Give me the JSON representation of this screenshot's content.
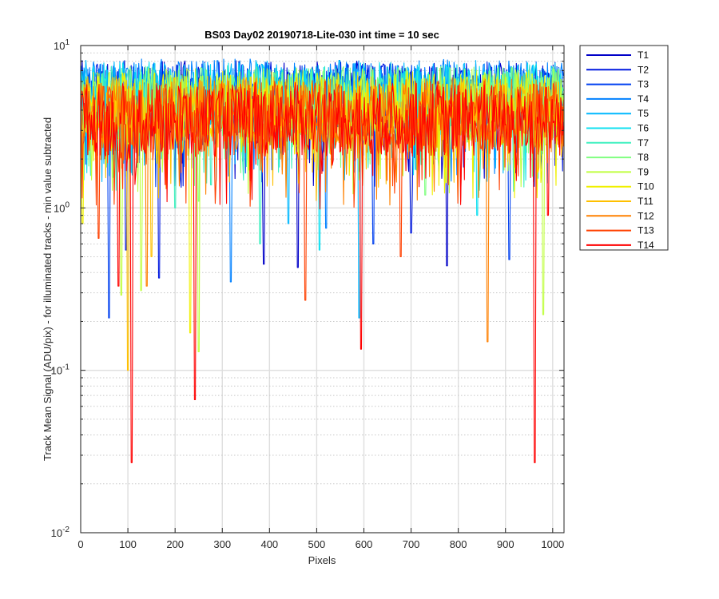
{
  "chart_data": {
    "type": "line",
    "title": "BS03 Day02 20190718-Lite-030 int time = 10 sec",
    "xlabel": "Pixels",
    "ylabel": "Track Mean Signal (ADU/pix) - for illuminated tracks - min value subtracted",
    "xlim": [
      0,
      1024
    ],
    "ylim": [
      0.01,
      10
    ],
    "yscale": "log",
    "grid": true,
    "minor_grid": "dotted",
    "legend_position": "outside-right",
    "x_ticks": [
      "0",
      "100",
      "200",
      "300",
      "400",
      "500",
      "600",
      "700",
      "800",
      "900",
      "1000"
    ],
    "x_tick_values": [
      0,
      100,
      200,
      300,
      400,
      500,
      600,
      700,
      800,
      900,
      1000
    ],
    "y_ticks": [
      {
        "value": 10,
        "base": "10",
        "exp": "1"
      },
      {
        "value": 1,
        "base": "10",
        "exp": "0"
      },
      {
        "value": 0.1,
        "base": "10",
        "exp": "-1"
      },
      {
        "value": 0.01,
        "base": "10",
        "exp": "-2"
      }
    ],
    "series_band_estimate": {
      "typical_low": 2.0,
      "typical_high": 6.5,
      "upper_envelope": 8.3
    },
    "series": [
      {
        "name": "T1",
        "color": "#0000c8",
        "base": 4.8,
        "dips": [
          {
            "x": 388,
            "y": 0.45
          },
          {
            "x": 460,
            "y": 0.43
          },
          {
            "x": 775,
            "y": 0.44
          }
        ]
      },
      {
        "name": "T2",
        "color": "#0018e0",
        "base": 4.7,
        "dips": [
          {
            "x": 95,
            "y": 0.55
          },
          {
            "x": 165,
            "y": 0.37
          },
          {
            "x": 700,
            "y": 0.7
          }
        ]
      },
      {
        "name": "T3",
        "color": "#0040f0",
        "base": 4.6,
        "dips": [
          {
            "x": 60,
            "y": 0.21
          },
          {
            "x": 620,
            "y": 0.6
          },
          {
            "x": 908,
            "y": 0.48
          }
        ]
      },
      {
        "name": "T4",
        "color": "#0080ff",
        "base": 4.9,
        "dips": [
          {
            "x": 318,
            "y": 0.35
          },
          {
            "x": 520,
            "y": 0.75
          }
        ]
      },
      {
        "name": "T5",
        "color": "#00b8ff",
        "base": 4.8,
        "dips": [
          {
            "x": 590,
            "y": 0.21
          },
          {
            "x": 440,
            "y": 0.8
          }
        ]
      },
      {
        "name": "T6",
        "color": "#10e0f0",
        "base": 4.7,
        "dips": [
          {
            "x": 505,
            "y": 0.55
          },
          {
            "x": 840,
            "y": 0.9
          }
        ]
      },
      {
        "name": "T7",
        "color": "#40f0c0",
        "base": 4.5,
        "dips": [
          {
            "x": 380,
            "y": 0.6
          },
          {
            "x": 200,
            "y": 1.0
          }
        ]
      },
      {
        "name": "T8",
        "color": "#80ff80",
        "base": 4.4,
        "dips": [
          {
            "x": 250,
            "y": 1.1
          },
          {
            "x": 730,
            "y": 1.2
          }
        ]
      },
      {
        "name": "T9",
        "color": "#c0ff40",
        "base": 4.3,
        "dips": [
          {
            "x": 85,
            "y": 0.29
          },
          {
            "x": 128,
            "y": 0.31
          },
          {
            "x": 250,
            "y": 0.13
          },
          {
            "x": 980,
            "y": 0.22
          }
        ]
      },
      {
        "name": "T10",
        "color": "#f0f000",
        "base": 4.1,
        "dips": [
          {
            "x": 232,
            "y": 0.17
          },
          {
            "x": 4,
            "y": 0.8
          }
        ]
      },
      {
        "name": "T11",
        "color": "#ffc000",
        "base": 3.9,
        "dips": [
          {
            "x": 100,
            "y": 0.1
          },
          {
            "x": 150,
            "y": 0.5
          }
        ]
      },
      {
        "name": "T12",
        "color": "#ff8000",
        "base": 3.7,
        "dips": [
          {
            "x": 140,
            "y": 0.33
          },
          {
            "x": 862,
            "y": 0.15
          }
        ]
      },
      {
        "name": "T13",
        "color": "#ff4000",
        "base": 3.6,
        "dips": [
          {
            "x": 38,
            "y": 0.65
          },
          {
            "x": 475,
            "y": 0.27
          },
          {
            "x": 678,
            "y": 0.5
          }
        ]
      },
      {
        "name": "T14",
        "color": "#ff0000",
        "base": 3.5,
        "dips": [
          {
            "x": 108,
            "y": 0.027
          },
          {
            "x": 242,
            "y": 0.066
          },
          {
            "x": 593,
            "y": 0.135
          },
          {
            "x": 962,
            "y": 0.027
          },
          {
            "x": 80,
            "y": 0.33
          },
          {
            "x": 990,
            "y": 0.9
          }
        ]
      }
    ]
  }
}
